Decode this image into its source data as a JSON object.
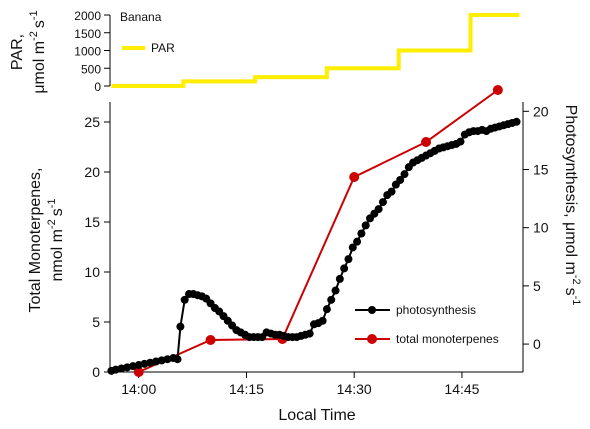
{
  "chart_data": [
    {
      "type": "line",
      "panel": "top",
      "annotation": "Banana",
      "ylabel_line1": "PAR,",
      "ylabel_line2": "μmol m",
      "ylabel_sup1": "-2",
      "ylabel_s": "s",
      "ylabel_sup2": "-1",
      "ylim": [
        0,
        2000
      ],
      "yticks": [
        "0",
        "500",
        "1000",
        "1500",
        "2000"
      ],
      "legend": [
        {
          "name": "PAR",
          "color": "#ffee00"
        }
      ],
      "series": [
        {
          "name": "PAR",
          "color": "#ffee00",
          "step": true,
          "x_minutes": [
            -3.8,
            6.2,
            6.2,
            16.2,
            16.2,
            26.2,
            26.2,
            36.2,
            36.2,
            46.2,
            46.2,
            53.0
          ],
          "values": [
            0,
            0,
            130,
            130,
            250,
            250,
            500,
            500,
            1000,
            1000,
            2000,
            2000
          ]
        }
      ]
    },
    {
      "type": "line",
      "panel": "bottom",
      "xlabel": "Local Time",
      "xticks": [
        "14:00",
        "14:15",
        "14:30",
        "14:45"
      ],
      "xtick_minutes": [
        0,
        15,
        30,
        45
      ],
      "xlim_minutes": [
        -4,
        53.5
      ],
      "left_axis": {
        "label_line1": "Total Monoterpenes,",
        "label_line2": "nmol m",
        "sup1": "-2",
        "s": "s",
        "sup2": "-1",
        "ylim": [
          0,
          27
        ],
        "ticks": [
          "0",
          "5",
          "10",
          "15",
          "20",
          "25"
        ]
      },
      "right_axis": {
        "label": "Photosynthesis, μmol m",
        "sup1": "-2",
        "s": "s",
        "sup2": "-1",
        "ylim": [
          -2.4,
          20.8
        ],
        "ticks": [
          "0",
          "5",
          "10",
          "15",
          "20"
        ]
      },
      "series": [
        {
          "name": "photosynthesis",
          "axis": "right",
          "color": "#000000",
          "x_minutes": [
            -3.8,
            -3.2,
            -2.4,
            -1.6,
            -0.8,
            0,
            0.8,
            1.6,
            2.4,
            3.2,
            4,
            4.8,
            5.4,
            5.8,
            6.4,
            7,
            7.6,
            8.2,
            8.8,
            9.4,
            10,
            10.6,
            11.2,
            11.8,
            12.4,
            13,
            13.6,
            14.2,
            14.8,
            15.4,
            16,
            16.6,
            17.2,
            17.8,
            18.4,
            19,
            19.6,
            20.2,
            20.8,
            21.4,
            22,
            22.6,
            23.2,
            23.8,
            24.4,
            25,
            25.6,
            26.2,
            26.8,
            27.4,
            28,
            28.6,
            29.2,
            29.8,
            30.4,
            31,
            31.6,
            32.2,
            32.8,
            33.4,
            34,
            34.6,
            35.2,
            35.8,
            36.4,
            37,
            37.6,
            38.2,
            38.8,
            39.4,
            40,
            40.6,
            41.2,
            41.8,
            42.4,
            43,
            43.6,
            44.2,
            44.8,
            45.4,
            46,
            46.6,
            47.2,
            47.8,
            48.4,
            49,
            49.6,
            50.2,
            50.8,
            51.4,
            52,
            52.6
          ],
          "values": [
            -2.3,
            -2.2,
            -2.1,
            -2.0,
            -1.9,
            -1.8,
            -1.7,
            -1.6,
            -1.5,
            -1.4,
            -1.3,
            -1.2,
            -1.3,
            1.5,
            3.8,
            4.3,
            4.3,
            4.2,
            4.1,
            3.9,
            3.5,
            3.1,
            2.8,
            2.4,
            2.0,
            1.6,
            1.2,
            1.0,
            0.8,
            0.6,
            0.6,
            0.6,
            0.6,
            1.0,
            0.9,
            0.8,
            0.8,
            0.7,
            0.6,
            0.6,
            0.6,
            0.7,
            0.8,
            0.9,
            1.7,
            1.8,
            2.0,
            3.0,
            3.8,
            4.6,
            5.6,
            6.5,
            7.3,
            8.3,
            8.8,
            9.5,
            10.2,
            10.8,
            11.2,
            11.6,
            12.2,
            12.8,
            13.1,
            13.7,
            14.1,
            14.6,
            15.2,
            15.6,
            15.8,
            16.0,
            16.2,
            16.4,
            16.6,
            16.8,
            16.9,
            17.0,
            17.1,
            17.2,
            17.4,
            18.0,
            18.2,
            18.3,
            18.3,
            18.4,
            18.3,
            18.5,
            18.6,
            18.7,
            18.8,
            18.9,
            19.0,
            19.1
          ]
        },
        {
          "name": "total monoterpenes",
          "axis": "left",
          "color": "#cc0000",
          "x_minutes": [
            0,
            10,
            20,
            30,
            40,
            50
          ],
          "values": [
            0,
            3.2,
            3.3,
            19.5,
            23.0,
            28.2
          ]
        }
      ]
    }
  ]
}
